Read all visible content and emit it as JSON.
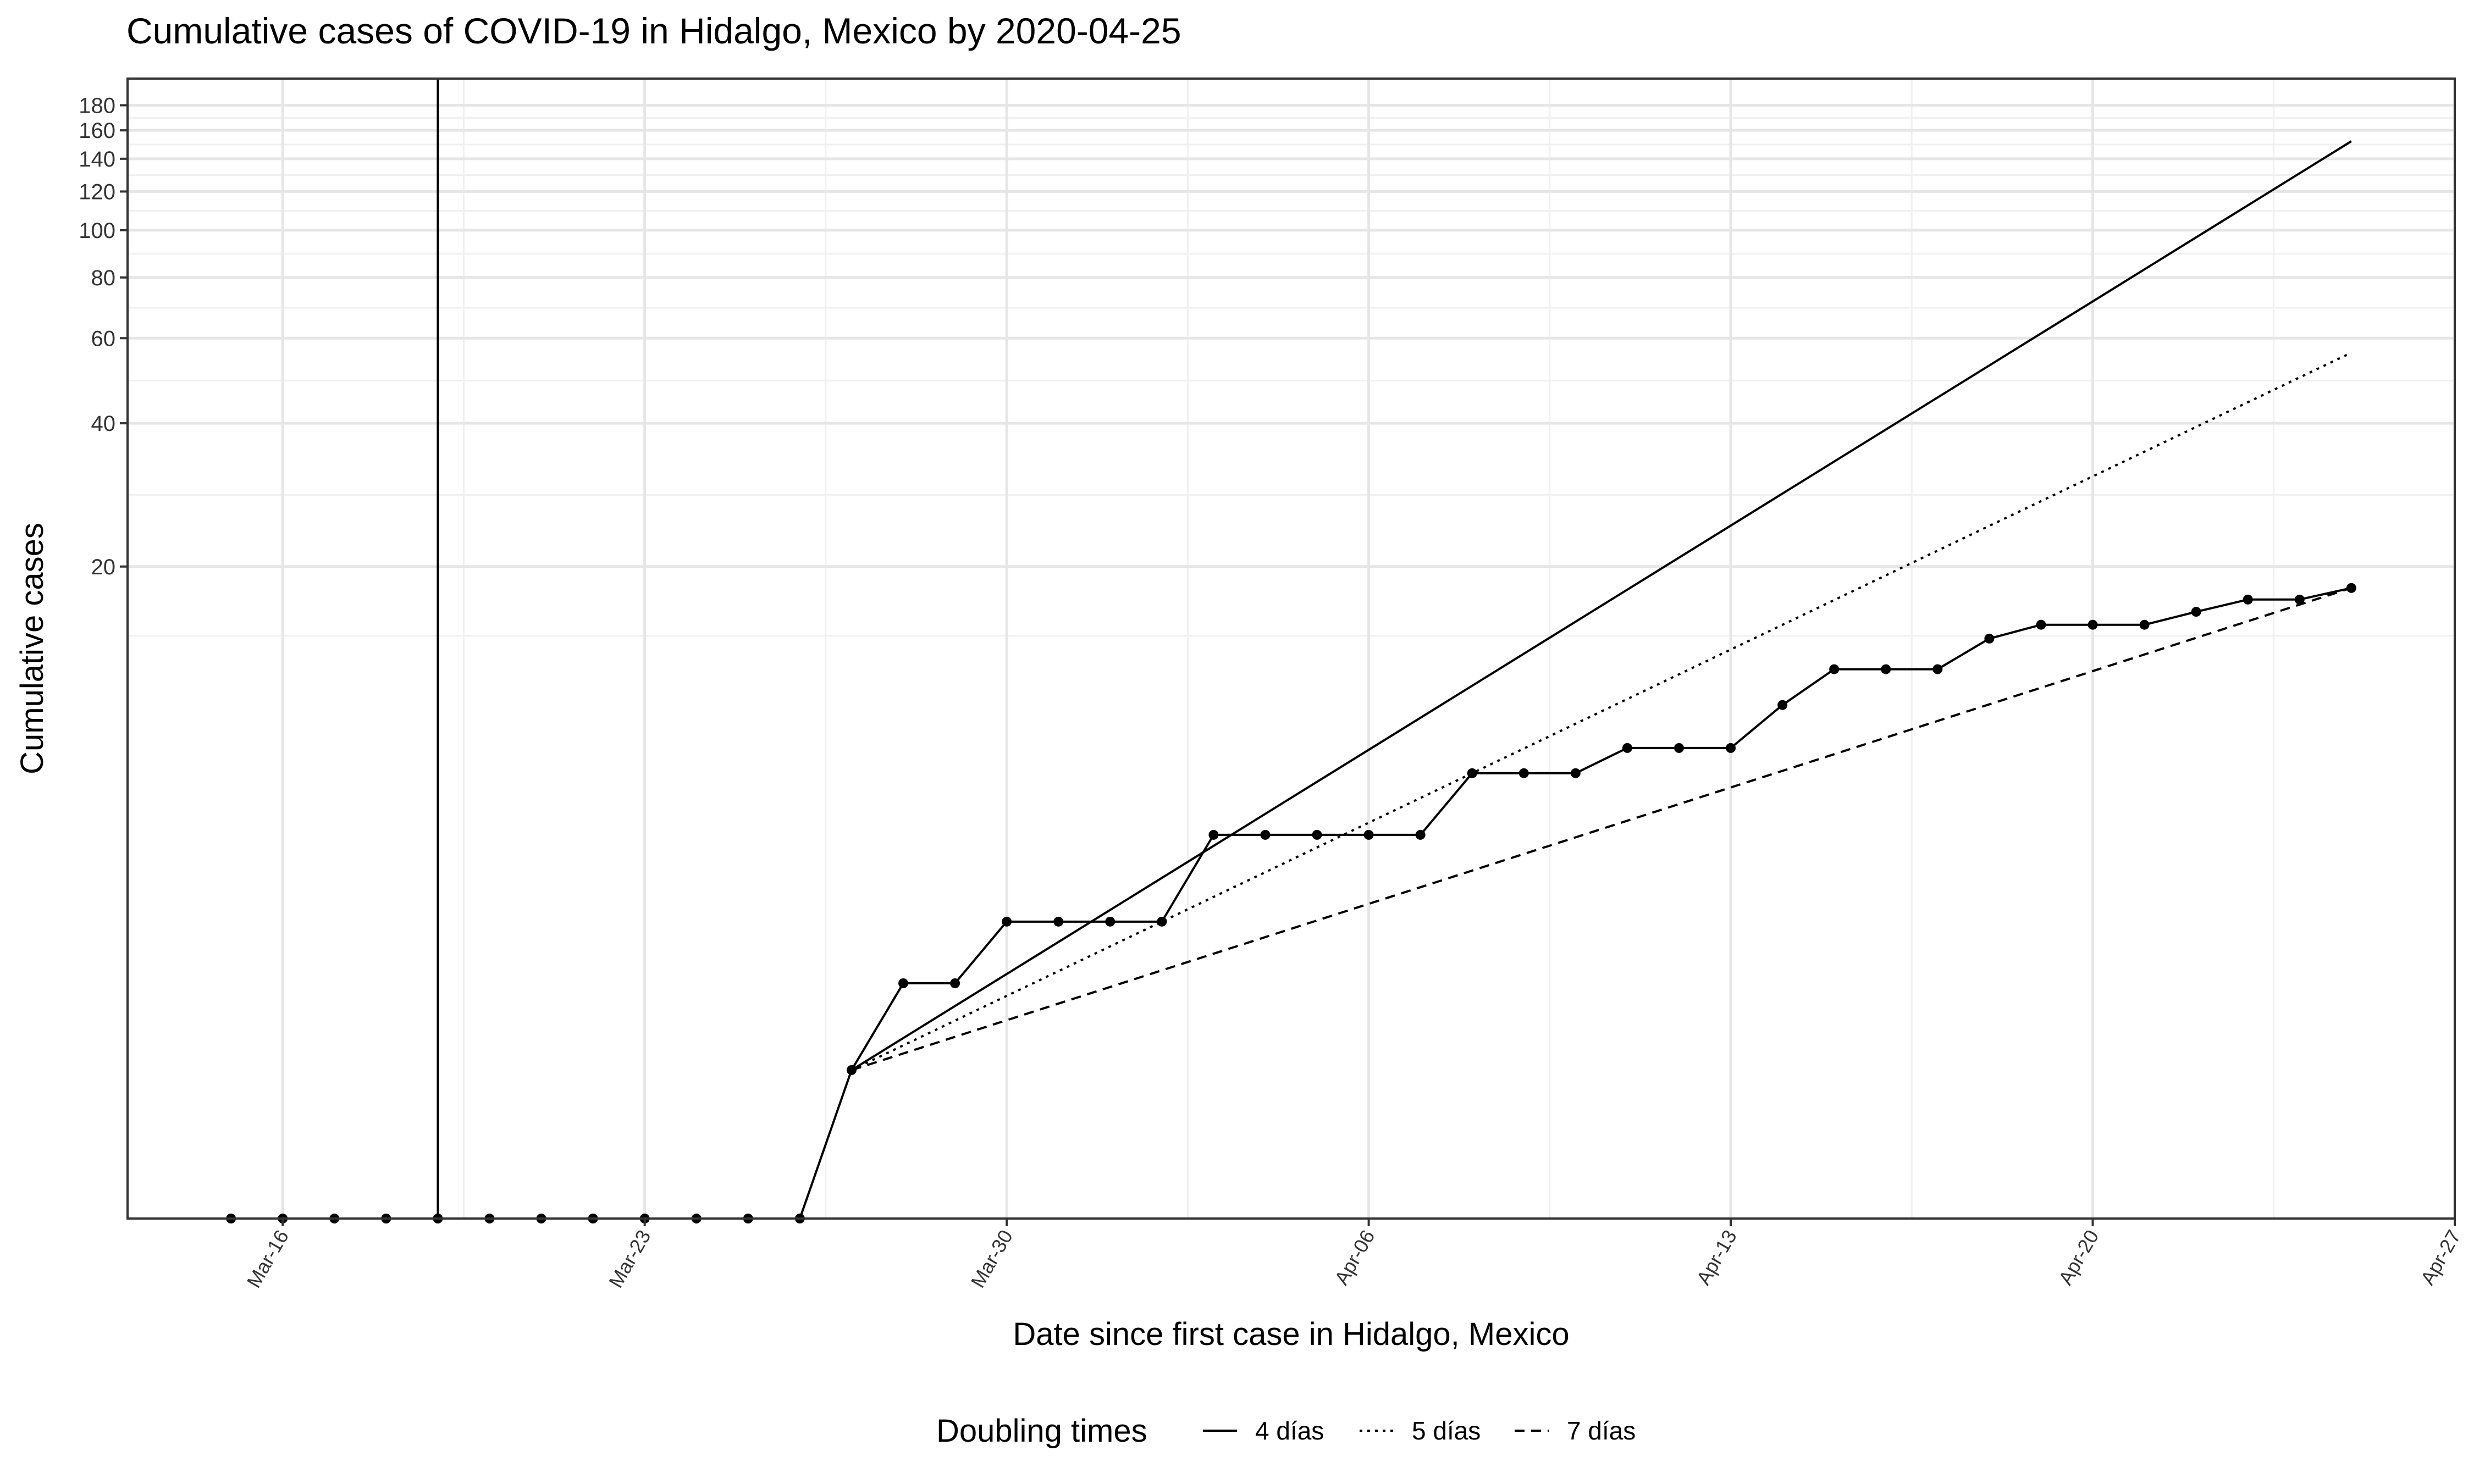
{
  "title": "Cumulative cases of COVID-19 in Hidalgo, Mexico by 2020-04-25",
  "chart_data": {
    "type": "line",
    "title": "Cumulative cases of COVID-19 in Hidalgo, Mexico by 2020-04-25",
    "xlabel": "Date since first case in Hidalgo, Mexico",
    "ylabel": "Cumulative cases",
    "y_scale": "log",
    "xlim": [
      "2020-03-13",
      "2020-04-27"
    ],
    "x_ticks": [
      {
        "date": "2020-03-16",
        "label": "Mar-16"
      },
      {
        "date": "2020-03-23",
        "label": "Mar-23"
      },
      {
        "date": "2020-03-30",
        "label": "Mar-30"
      },
      {
        "date": "2020-04-06",
        "label": "Apr-06"
      },
      {
        "date": "2020-04-13",
        "label": "Apr-13"
      },
      {
        "date": "2020-04-20",
        "label": "Apr-20"
      },
      {
        "date": "2020-04-27",
        "label": "Apr-27"
      }
    ],
    "y_ticks": [
      20,
      40,
      60,
      80,
      100,
      120,
      140,
      160,
      180
    ],
    "first_case_marker": "2020-03-19",
    "grid": true,
    "legend_position": "bottom",
    "series": [
      {
        "style": "solid-with-points",
        "points": [
          {
            "x": "2020-03-15",
            "y": 0
          },
          {
            "x": "2020-03-16",
            "y": 0
          },
          {
            "x": "2020-03-17",
            "y": 0
          },
          {
            "x": "2020-03-18",
            "y": 0
          },
          {
            "x": "2020-03-19",
            "y": 0
          },
          {
            "x": "2020-03-20",
            "y": 0
          },
          {
            "x": "2020-03-21",
            "y": 0
          },
          {
            "x": "2020-03-22",
            "y": 0
          },
          {
            "x": "2020-03-23",
            "y": 0
          },
          {
            "x": "2020-03-24",
            "y": 0
          },
          {
            "x": "2020-03-25",
            "y": 0
          },
          {
            "x": "2020-03-26",
            "y": 0
          },
          {
            "x": "2020-03-27",
            "y": 1
          },
          {
            "x": "2020-03-28",
            "y": 2
          },
          {
            "x": "2020-03-29",
            "y": 2
          },
          {
            "x": "2020-03-30",
            "y": 3
          },
          {
            "x": "2020-03-31",
            "y": 3
          },
          {
            "x": "2020-04-01",
            "y": 3
          },
          {
            "x": "2020-04-02",
            "y": 3
          },
          {
            "x": "2020-04-03",
            "y": 5
          },
          {
            "x": "2020-04-04",
            "y": 5
          },
          {
            "x": "2020-04-05",
            "y": 5
          },
          {
            "x": "2020-04-06",
            "y": 5
          },
          {
            "x": "2020-04-07",
            "y": 5
          },
          {
            "x": "2020-04-08",
            "y": 7
          },
          {
            "x": "2020-04-09",
            "y": 7
          },
          {
            "x": "2020-04-10",
            "y": 7
          },
          {
            "x": "2020-04-11",
            "y": 8
          },
          {
            "x": "2020-04-12",
            "y": 8
          },
          {
            "x": "2020-04-13",
            "y": 8
          },
          {
            "x": "2020-04-14",
            "y": 10
          },
          {
            "x": "2020-04-15",
            "y": 12
          },
          {
            "x": "2020-04-16",
            "y": 12
          },
          {
            "x": "2020-04-17",
            "y": 12
          },
          {
            "x": "2020-04-18",
            "y": 14
          },
          {
            "x": "2020-04-19",
            "y": 15
          },
          {
            "x": "2020-04-20",
            "y": 15
          },
          {
            "x": "2020-04-21",
            "y": 15
          },
          {
            "x": "2020-04-22",
            "y": 16
          },
          {
            "x": "2020-04-23",
            "y": 17
          },
          {
            "x": "2020-04-24",
            "y": 17
          },
          {
            "x": "2020-04-25",
            "y": 18
          }
        ]
      }
    ],
    "doubling_lines": [
      {
        "label": "4 días",
        "dash": "solid",
        "from": {
          "x": "2020-03-27",
          "y": 1
        },
        "to": {
          "x": "2020-04-25",
          "y": 152
        }
      },
      {
        "label": "5 días",
        "dash": "dotted",
        "from": {
          "x": "2020-03-27",
          "y": 1
        },
        "to": {
          "x": "2020-04-25",
          "y": 56
        }
      },
      {
        "label": "7 días",
        "dash": "dashed",
        "from": {
          "x": "2020-03-27",
          "y": 1
        },
        "to": {
          "x": "2020-04-25",
          "y": 18
        }
      }
    ],
    "legend": {
      "title": "Doubling times",
      "entries": [
        {
          "label": "4 días",
          "dash": "solid"
        },
        {
          "label": "5 días",
          "dash": "dotted"
        },
        {
          "label": "7 días",
          "dash": "dashed"
        }
      ]
    }
  }
}
